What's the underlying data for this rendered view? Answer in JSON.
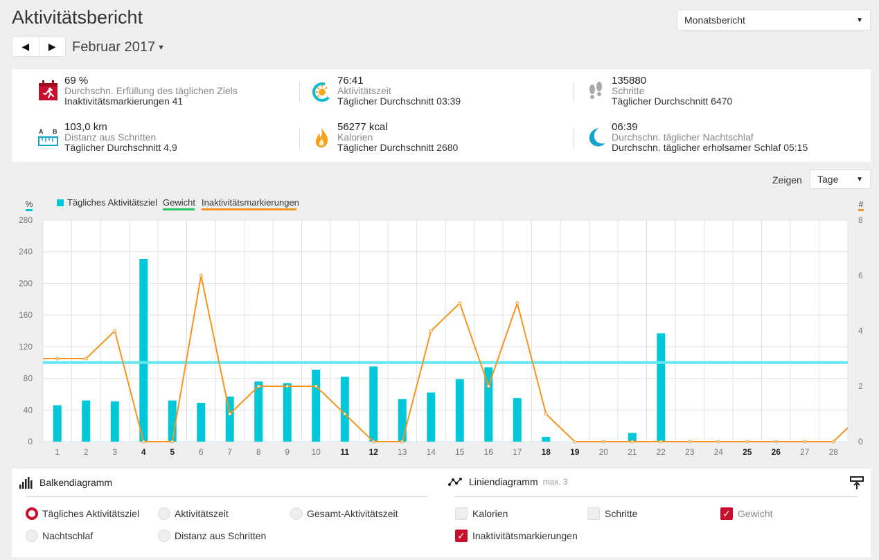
{
  "header": {
    "title": "Aktivitätsbericht",
    "prev_icon": "◀",
    "next_icon": "▶",
    "month": "Februar 2017",
    "month_caret": "▼",
    "report_select": "Monatsbericht",
    "select_arrow": "▼"
  },
  "summary": [
    {
      "icon": "runner-calendar-icon",
      "value": "69 %",
      "label": "Durchschn. Erfüllung des täglichen Ziels",
      "sub": "Inaktivitätsmarkierungen 41"
    },
    {
      "icon": "activity-sun-icon",
      "value": "76:41",
      "label": "Aktivitätszeit",
      "sub": "Täglicher Durchschnitt 03:39"
    },
    {
      "icon": "footsteps-icon",
      "value": "135880",
      "label": "Schritte",
      "sub": "Täglicher Durchschnitt 6470"
    },
    {
      "icon": "distance-ruler-icon",
      "value": "103,0 km",
      "label": "Distanz aus Schritten",
      "sub": "Täglicher Durchschnitt 4,9",
      "icon_text_a": "A",
      "icon_text_b": "B"
    },
    {
      "icon": "flame-icon",
      "value": "56277 kcal",
      "label": "Kalorien",
      "sub": "Täglicher Durchschnitt 2680"
    },
    {
      "icon": "moon-icon",
      "value": "06:39",
      "label": "Durchschn. täglicher Nachtschlaf",
      "sub": "Durchschn. täglicher erholsamer Schlaf 05:15"
    }
  ],
  "view": {
    "label": "Zeigen",
    "select": "Tage"
  },
  "chart_data": {
    "type": "bar",
    "left_axis_unit": "%",
    "right_axis_unit": "#",
    "legend": [
      "Tägliches Aktivitätsziel",
      "Gewicht",
      "Inaktivitätsmarkierungen"
    ],
    "categories": [
      "1",
      "2",
      "3",
      "4",
      "5",
      "6",
      "7",
      "8",
      "9",
      "10",
      "11",
      "12",
      "13",
      "14",
      "15",
      "16",
      "17",
      "18",
      "19",
      "20",
      "21",
      "22",
      "23",
      "24",
      "25",
      "26",
      "27",
      "28"
    ],
    "bold_categories": [
      "4",
      "5",
      "11",
      "12",
      "18",
      "19",
      "25",
      "26"
    ],
    "ylim": [
      0,
      280
    ],
    "yticks": [
      0,
      40,
      80,
      120,
      160,
      200,
      240,
      280
    ],
    "y2lim": [
      0,
      8
    ],
    "y2ticks": [
      0,
      2,
      4,
      6,
      8
    ],
    "goal_line": 100,
    "series": [
      {
        "name": "Tägliches Aktivitätsziel",
        "type": "bar",
        "axis": "left",
        "color": "#00c8d9",
        "values": [
          46,
          52,
          51,
          231,
          52,
          49,
          57,
          76,
          74,
          91,
          82,
          95,
          54,
          62,
          79,
          94,
          55,
          6,
          0,
          0,
          11,
          137,
          0,
          0,
          0,
          0,
          0,
          0
        ]
      },
      {
        "name": "Inaktivitätsmarkierungen",
        "type": "line",
        "axis": "right",
        "color": "#f7931e",
        "values": [
          3,
          3,
          4,
          0,
          0,
          6,
          1,
          2,
          2,
          2,
          1,
          0,
          0,
          4,
          5,
          2,
          5,
          1,
          0,
          0,
          0,
          0,
          0,
          0,
          0,
          0,
          0,
          0
        ]
      }
    ],
    "colors": {
      "goal_line": "#66e6f0",
      "weight": "#22c55e",
      "inactivity": "#f7931e",
      "bar": "#00c8d9"
    }
  },
  "controls": {
    "bar_title": "Balkendiagramm",
    "line_title": "Liniendiagramm",
    "line_max": "max. 3",
    "bar_options": [
      {
        "label": "Tägliches Aktivitätsziel",
        "selected": true
      },
      {
        "label": "Aktivitätszeit",
        "selected": false
      },
      {
        "label": "Gesamt-Aktivitätszeit",
        "selected": false
      },
      {
        "label": "Nachtschlaf",
        "selected": false
      },
      {
        "label": "Distanz aus Schritten",
        "selected": false
      }
    ],
    "line_options": [
      {
        "label": "Kalorien",
        "checked": false
      },
      {
        "label": "Schritte",
        "checked": false
      },
      {
        "label": "Gewicht",
        "checked": true
      },
      {
        "label": "Inaktivitätsmarkierungen",
        "checked": true
      }
    ],
    "check_mark": "✓"
  },
  "accent_color": "#c8102e"
}
